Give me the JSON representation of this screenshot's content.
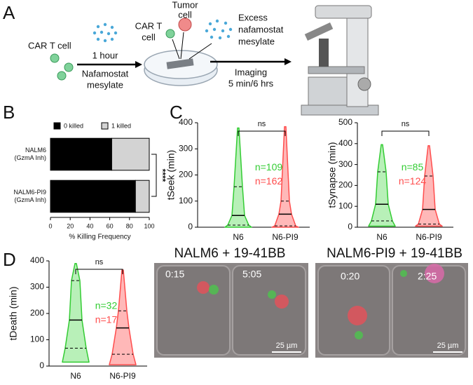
{
  "panel_labels": [
    "A",
    "B",
    "C",
    "D"
  ],
  "schematic": {
    "car_t_cell": "CAR T cell",
    "incubation_time": "1 hour",
    "drug": [
      "Nafamostat",
      "mesylate"
    ],
    "car_t_label": [
      "CAR T",
      "cell"
    ],
    "tumor_label": [
      "Tumor",
      "cell"
    ],
    "excess": [
      "Excess",
      "nafamostat",
      "mesylate"
    ],
    "imaging": [
      "Imaging",
      "5 min/6 hrs"
    ]
  },
  "chart_data": [
    {
      "type": "barh_stacked",
      "xlabel": "% Killing Frequency",
      "categories": [
        [
          "NALM6",
          "(GzmA Inh)"
        ],
        [
          "NALM6-PI9",
          "(GzmA Inh)"
        ]
      ],
      "series": [
        {
          "name": "0 killed",
          "color": "#000000",
          "values": [
            62,
            86
          ]
        },
        {
          "name": "1 killed",
          "color": "#d3d3d3",
          "values": [
            38,
            14
          ]
        }
      ],
      "xlim": [
        0,
        100
      ],
      "xticks": [
        0,
        20,
        40,
        60,
        80,
        100
      ],
      "annotation": "****"
    },
    {
      "type": "violin",
      "ylabel": "tSeek (min)",
      "categories": [
        "N6",
        "N6-PI9"
      ],
      "ylim": [
        0,
        400
      ],
      "yticks": [
        0,
        100,
        200,
        300,
        400
      ],
      "annotation": "ns",
      "groups": [
        {
          "color": "#33cc33",
          "fill": "#b8f0b8",
          "min": 0,
          "q1": 8,
          "median": 45,
          "q3": 155,
          "max": 380,
          "n_label": "n=109"
        },
        {
          "color": "#ff4d4d",
          "fill": "#ffb8b8",
          "min": 0,
          "q1": 5,
          "median": 50,
          "q3": 100,
          "max": 385,
          "n_label": "n=162"
        }
      ]
    },
    {
      "type": "violin",
      "ylabel": "tSynapse (min)",
      "categories": [
        "N6",
        "N6-PI9"
      ],
      "ylim": [
        0,
        500
      ],
      "yticks": [
        0,
        100,
        200,
        300,
        400,
        500
      ],
      "annotation": "ns",
      "groups": [
        {
          "color": "#33cc33",
          "fill": "#b8f0b8",
          "min": 5,
          "q1": 30,
          "median": 110,
          "q3": 265,
          "max": 395,
          "n_label": "n=85"
        },
        {
          "color": "#ff4d4d",
          "fill": "#ffb8b8",
          "min": 5,
          "q1": 15,
          "median": 85,
          "q3": 245,
          "max": 390,
          "n_label": "n=124"
        }
      ]
    },
    {
      "type": "violin",
      "ylabel": "tDeath (min)",
      "categories": [
        "N6",
        "N6-PI9"
      ],
      "ylim": [
        0,
        400
      ],
      "yticks": [
        0,
        100,
        200,
        300,
        400
      ],
      "annotation": "ns",
      "groups": [
        {
          "color": "#33cc33",
          "fill": "#b8f0b8",
          "min": 15,
          "q1": 68,
          "median": 175,
          "q3": 325,
          "max": 390,
          "n_label": "n=32"
        },
        {
          "color": "#ff4d4d",
          "fill": "#ffb8b8",
          "min": 5,
          "q1": 45,
          "median": 145,
          "q3": 210,
          "max": 365,
          "n_label": "n=17"
        }
      ]
    }
  ],
  "micrographs": [
    {
      "title": "NALM6 + 19-41BB",
      "frames": [
        "0:15",
        "5:05"
      ],
      "scale_bar": "25 µm"
    },
    {
      "title": "NALM6-PI9 + 19-41BB",
      "frames": [
        "0:20",
        "2:25"
      ],
      "scale_bar": "25 µm"
    }
  ]
}
